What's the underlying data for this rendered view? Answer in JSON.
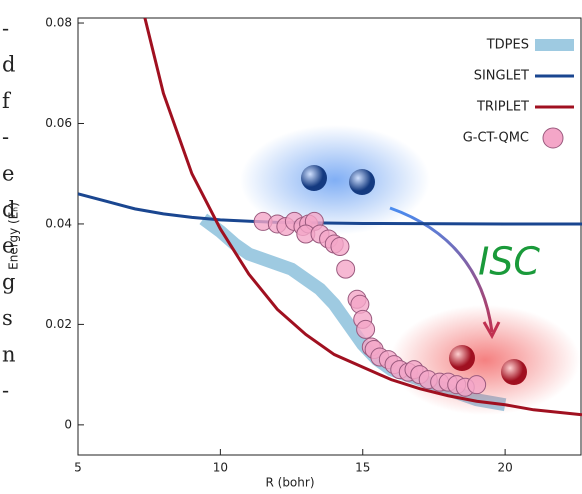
{
  "side_text": [
    "-",
    "d",
    "f",
    "-",
    "e",
    "d",
    "e",
    "g",
    "s",
    "n",
    "-"
  ],
  "chart_data": {
    "type": "line",
    "xlabel": "R (bohr)",
    "ylabel": "Energy (Eₕ)",
    "xlim": [
      5,
      22.7
    ],
    "ylim": [
      -0.006,
      0.081
    ],
    "xticks": [
      5,
      10,
      15,
      20
    ],
    "yticks": [
      0,
      0.02,
      0.04,
      0.06,
      0.08
    ],
    "legend": "upper right",
    "annotations": [
      "ISC"
    ],
    "series": [
      {
        "name": "TDPES",
        "style": "band",
        "color": "#9ecae1",
        "x": [
          9.4,
          10,
          10.5,
          11,
          12,
          12.5,
          13,
          13.5,
          14,
          14.5,
          15,
          15.5,
          16,
          17,
          18,
          19,
          20
        ],
        "values": [
          0.041,
          0.0385,
          0.036,
          0.034,
          0.032,
          0.031,
          0.029,
          0.027,
          0.024,
          0.02,
          0.016,
          0.013,
          0.011,
          0.009,
          0.007,
          0.005,
          0.004
        ]
      },
      {
        "name": "SINGLET",
        "style": "line",
        "color": "#1a4690",
        "x": [
          5,
          6,
          7,
          8,
          9,
          10,
          12,
          15,
          20,
          22.7
        ],
        "values": [
          0.046,
          0.0445,
          0.043,
          0.042,
          0.0413,
          0.0408,
          0.0403,
          0.0401,
          0.04,
          0.04
        ]
      },
      {
        "name": "TRIPLET",
        "style": "line",
        "color": "#a01020",
        "x": [
          7.35,
          8,
          9,
          10,
          11,
          12,
          13,
          14,
          15,
          16,
          17,
          18,
          19,
          20,
          21,
          22.7
        ],
        "values": [
          0.081,
          0.066,
          0.05,
          0.039,
          0.03,
          0.023,
          0.018,
          0.014,
          0.0115,
          0.009,
          0.0072,
          0.0058,
          0.0047,
          0.004,
          0.003,
          0.002
        ]
      },
      {
        "name": "G-CT-QMC",
        "style": "scatter",
        "color": "#f4a6c8",
        "x": [
          11.5,
          12,
          12.3,
          12.6,
          12.9,
          13.1,
          13.3,
          13,
          13.5,
          13.8,
          14,
          14.2,
          14.4,
          14.8,
          14.9,
          15,
          15.1,
          15.3,
          15.4,
          15.6,
          15.9,
          16.1,
          16.3,
          16.6,
          16.8,
          17,
          17.3,
          17.7,
          18,
          18.3,
          18.6,
          19
        ],
        "values": [
          0.0405,
          0.04,
          0.0395,
          0.0405,
          0.0395,
          0.04,
          0.0405,
          0.038,
          0.038,
          0.037,
          0.036,
          0.0355,
          0.031,
          0.025,
          0.024,
          0.021,
          0.019,
          0.0155,
          0.015,
          0.0135,
          0.013,
          0.012,
          0.011,
          0.0105,
          0.011,
          0.01,
          0.009,
          0.0085,
          0.0085,
          0.008,
          0.0075,
          0.008
        ]
      }
    ]
  }
}
